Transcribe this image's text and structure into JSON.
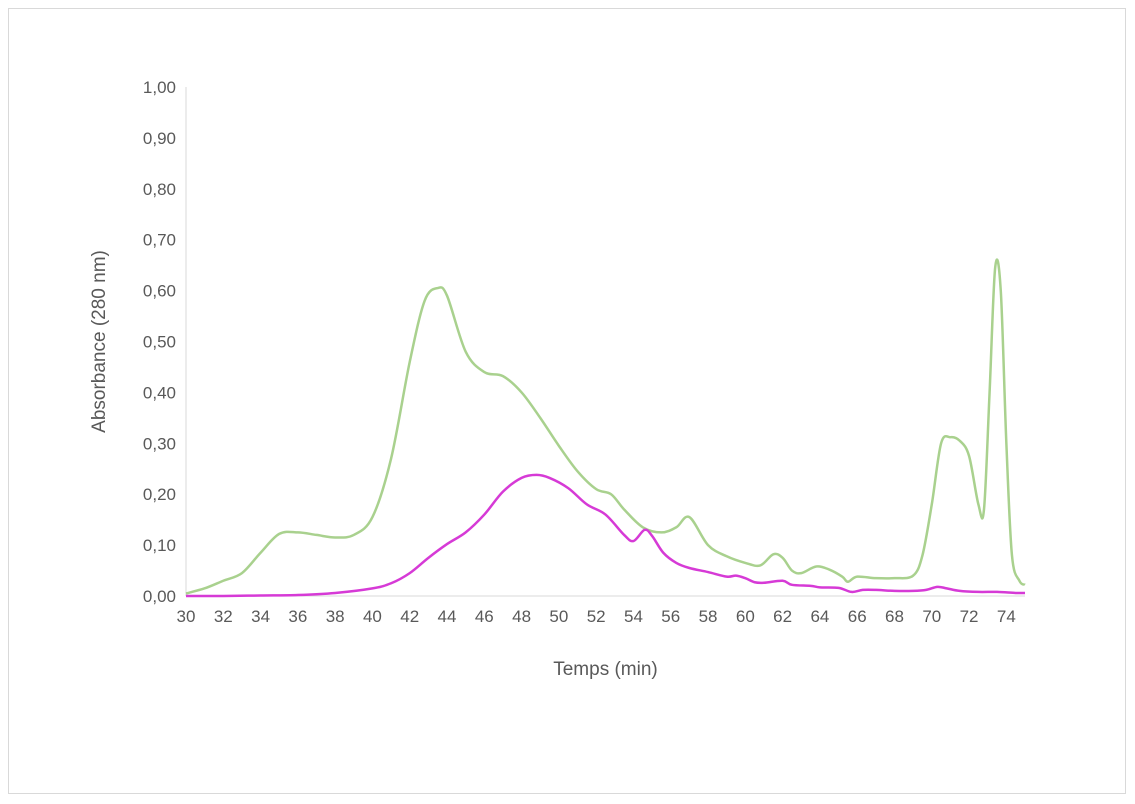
{
  "chart_data": {
    "type": "line",
    "title": "",
    "xlabel": "Temps (min)",
    "ylabel": "Absorbance (280 nm)",
    "xlim": [
      30,
      75
    ],
    "ylim": [
      0,
      1
    ],
    "x_ticks": [
      "30",
      "32",
      "34",
      "36",
      "38",
      "40",
      "42",
      "44",
      "46",
      "48",
      "50",
      "52",
      "54",
      "56",
      "58",
      "60",
      "62",
      "64",
      "66",
      "68",
      "70",
      "72",
      "74"
    ],
    "y_ticks": [
      "0,00",
      "0,10",
      "0,20",
      "0,30",
      "0,40",
      "0,50",
      "0,60",
      "0,70",
      "0,80",
      "0,90",
      "1,00"
    ],
    "grid": false,
    "legend": "none",
    "series": [
      {
        "color": "#a9d18e",
        "points": [
          [
            30.0,
            0.005
          ],
          [
            31.0,
            0.015
          ],
          [
            32.0,
            0.03
          ],
          [
            33.0,
            0.045
          ],
          [
            34.0,
            0.085
          ],
          [
            35.0,
            0.122
          ],
          [
            36.0,
            0.125
          ],
          [
            37.0,
            0.12
          ],
          [
            38.0,
            0.115
          ],
          [
            39.0,
            0.12
          ],
          [
            40.0,
            0.155
          ],
          [
            41.0,
            0.27
          ],
          [
            42.0,
            0.46
          ],
          [
            42.8,
            0.58
          ],
          [
            43.5,
            0.605
          ],
          [
            44.0,
            0.59
          ],
          [
            45.0,
            0.48
          ],
          [
            46.0,
            0.44
          ],
          [
            47.0,
            0.432
          ],
          [
            48.0,
            0.4
          ],
          [
            49.0,
            0.35
          ],
          [
            50.0,
            0.295
          ],
          [
            51.0,
            0.245
          ],
          [
            52.0,
            0.21
          ],
          [
            52.8,
            0.2
          ],
          [
            53.5,
            0.17
          ],
          [
            54.5,
            0.135
          ],
          [
            55.5,
            0.125
          ],
          [
            56.3,
            0.135
          ],
          [
            57.0,
            0.155
          ],
          [
            58.0,
            0.1
          ],
          [
            59.0,
            0.078
          ],
          [
            60.0,
            0.065
          ],
          [
            60.8,
            0.06
          ],
          [
            61.5,
            0.082
          ],
          [
            62.0,
            0.075
          ],
          [
            62.5,
            0.05
          ],
          [
            63.0,
            0.045
          ],
          [
            63.8,
            0.058
          ],
          [
            64.5,
            0.052
          ],
          [
            65.2,
            0.038
          ],
          [
            65.5,
            0.028
          ],
          [
            66.0,
            0.038
          ],
          [
            67.0,
            0.035
          ],
          [
            68.0,
            0.035
          ],
          [
            69.0,
            0.04
          ],
          [
            69.5,
            0.08
          ],
          [
            70.0,
            0.18
          ],
          [
            70.5,
            0.3
          ],
          [
            71.0,
            0.312
          ],
          [
            71.5,
            0.305
          ],
          [
            72.0,
            0.275
          ],
          [
            72.5,
            0.18
          ],
          [
            72.8,
            0.17
          ],
          [
            73.1,
            0.4
          ],
          [
            73.4,
            0.645
          ],
          [
            73.7,
            0.6
          ],
          [
            74.0,
            0.3
          ],
          [
            74.3,
            0.08
          ],
          [
            74.7,
            0.03
          ],
          [
            75.0,
            0.022
          ]
        ]
      },
      {
        "color": "#d63ad6",
        "points": [
          [
            30.0,
            0.0
          ],
          [
            32.0,
            0.0
          ],
          [
            34.0,
            0.001
          ],
          [
            36.0,
            0.002
          ],
          [
            38.0,
            0.006
          ],
          [
            40.0,
            0.015
          ],
          [
            41.0,
            0.025
          ],
          [
            42.0,
            0.045
          ],
          [
            43.0,
            0.075
          ],
          [
            44.0,
            0.102
          ],
          [
            45.0,
            0.125
          ],
          [
            46.0,
            0.16
          ],
          [
            47.0,
            0.205
          ],
          [
            48.0,
            0.232
          ],
          [
            48.8,
            0.238
          ],
          [
            49.5,
            0.232
          ],
          [
            50.5,
            0.212
          ],
          [
            51.5,
            0.18
          ],
          [
            52.5,
            0.16
          ],
          [
            53.5,
            0.12
          ],
          [
            54.0,
            0.108
          ],
          [
            54.6,
            0.13
          ],
          [
            55.0,
            0.118
          ],
          [
            55.6,
            0.085
          ],
          [
            56.3,
            0.065
          ],
          [
            57.0,
            0.055
          ],
          [
            58.0,
            0.047
          ],
          [
            59.0,
            0.038
          ],
          [
            59.5,
            0.04
          ],
          [
            60.0,
            0.035
          ],
          [
            60.5,
            0.027
          ],
          [
            61.0,
            0.026
          ],
          [
            62.0,
            0.03
          ],
          [
            62.5,
            0.022
          ],
          [
            63.5,
            0.02
          ],
          [
            64.0,
            0.017
          ],
          [
            65.0,
            0.016
          ],
          [
            65.7,
            0.008
          ],
          [
            66.3,
            0.012
          ],
          [
            67.0,
            0.012
          ],
          [
            68.0,
            0.01
          ],
          [
            69.0,
            0.01
          ],
          [
            69.7,
            0.012
          ],
          [
            70.3,
            0.018
          ],
          [
            70.8,
            0.015
          ],
          [
            71.5,
            0.01
          ],
          [
            72.5,
            0.008
          ],
          [
            73.5,
            0.008
          ],
          [
            74.5,
            0.006
          ],
          [
            75.0,
            0.006
          ]
        ]
      }
    ]
  }
}
